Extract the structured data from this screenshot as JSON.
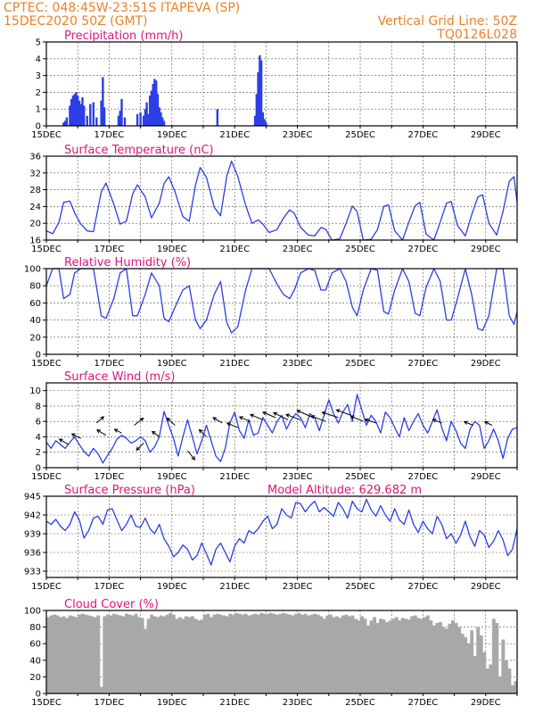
{
  "header": {
    "line1": "CPTEC:   048:45W-23:51S   ITAPEVA (SP)",
    "line2": "15DEC2020 50Z (GMT)",
    "right1": "Vertical Grid Line: 50Z",
    "right2": "TQ0126L028",
    "color": "#e8822a"
  },
  "colors": {
    "title": "#e0127d",
    "line": "#2c3ee6",
    "cloud": "#a8a8a8",
    "grid": "#555555"
  },
  "x_labels": [
    "15DEC",
    "17DEC",
    "19DEC",
    "21DEC",
    "23DEC",
    "25DEC",
    "27DEC",
    "29DEC"
  ],
  "x_label_days": [
    15,
    17,
    19,
    21,
    23,
    25,
    27,
    29
  ],
  "chart_data": [
    {
      "type": "bar",
      "title": "Precipitation (mm/h)",
      "ylim": [
        0,
        5
      ],
      "yticks": [
        "0",
        "1",
        "2",
        "3",
        "4",
        "5"
      ],
      "xlim": [
        15,
        30
      ],
      "x": [
        15.55,
        15.6,
        15.65,
        15.75,
        15.8,
        15.85,
        15.9,
        15.95,
        16.0,
        16.05,
        16.1,
        16.15,
        16.2,
        16.3,
        16.4,
        16.5,
        16.6,
        16.75,
        16.8,
        16.85,
        17.3,
        17.35,
        17.4,
        17.5,
        17.9,
        18.0,
        18.1,
        18.15,
        18.2,
        18.25,
        18.3,
        18.35,
        18.4,
        18.45,
        18.5,
        18.55,
        18.6,
        18.65,
        18.7,
        18.75,
        20.45,
        21.65,
        21.7,
        21.75,
        21.8,
        21.85,
        21.9,
        21.95,
        22.0
      ],
      "values": [
        0.2,
        0.3,
        0.5,
        1.2,
        1.6,
        1.8,
        1.9,
        2.0,
        1.8,
        1.5,
        1.3,
        1.7,
        1.2,
        0.6,
        1.3,
        1.4,
        0.5,
        1.5,
        2.9,
        1.1,
        0.6,
        0.9,
        1.6,
        0.5,
        0.7,
        0.8,
        0.6,
        1.0,
        1.4,
        0.7,
        1.8,
        2.1,
        2.5,
        2.8,
        2.7,
        1.9,
        1.1,
        0.8,
        0.5,
        0.3,
        1.0,
        0.6,
        1.9,
        3.2,
        4.2,
        3.9,
        0.8,
        0.4,
        0.2
      ]
    },
    {
      "type": "line",
      "title": "Surface Temperature (nC)",
      "ylim": [
        16,
        36
      ],
      "yticks": [
        "16",
        "20",
        "24",
        "28",
        "32",
        "36"
      ],
      "xlim": [
        15,
        30
      ],
      "x": [
        15.0,
        15.2,
        15.4,
        15.55,
        15.75,
        15.9,
        16.1,
        16.3,
        16.5,
        16.75,
        16.9,
        17.15,
        17.35,
        17.55,
        17.75,
        17.9,
        18.15,
        18.35,
        18.6,
        18.75,
        18.9,
        19.1,
        19.35,
        19.55,
        19.75,
        19.9,
        20.1,
        20.35,
        20.55,
        20.75,
        20.9,
        21.1,
        21.35,
        21.55,
        21.75,
        21.9,
        22.1,
        22.35,
        22.55,
        22.75,
        22.9,
        23.1,
        23.35,
        23.55,
        23.75,
        23.9,
        24.1,
        24.35,
        24.55,
        24.75,
        24.9,
        25.1,
        25.35,
        25.55,
        25.75,
        25.9,
        26.1,
        26.35,
        26.55,
        26.75,
        26.9,
        27.1,
        27.35,
        27.55,
        27.75,
        27.9,
        28.1,
        28.35,
        28.55,
        28.75,
        28.9,
        29.1,
        29.35,
        29.55,
        29.75,
        29.9,
        30.0
      ],
      "values": [
        18.2,
        17.5,
        20.2,
        25.0,
        25.3,
        22.5,
        19.8,
        18.2,
        18.0,
        27.5,
        29.6,
        24.5,
        19.8,
        20.5,
        27.0,
        29.2,
        26.3,
        21.3,
        24.8,
        29.5,
        31.1,
        27.5,
        21.6,
        20.5,
        29.0,
        33.3,
        31.0,
        23.8,
        21.8,
        31.3,
        34.8,
        31.2,
        24.3,
        20.0,
        20.8,
        19.8,
        17.8,
        18.5,
        21.2,
        23.2,
        22.4,
        19.0,
        17.2,
        17.0,
        19.0,
        18.6,
        16.0,
        16.3,
        20.0,
        24.1,
        22.8,
        16.0,
        16.2,
        18.5,
        24.0,
        24.4,
        18.2,
        16.0,
        20.3,
        24.2,
        25.0,
        17.4,
        16.0,
        20.3,
        24.8,
        25.2,
        19.5,
        17.0,
        22.0,
        26.3,
        26.8,
        20.0,
        17.2,
        22.8,
        30.0,
        31.1,
        25.0
      ]
    },
    {
      "type": "line",
      "title": "Relative Humidity (%)",
      "ylim": [
        0,
        100
      ],
      "yticks": [
        "0",
        "20",
        "40",
        "60",
        "80",
        "100"
      ],
      "xlim": [
        15,
        30
      ],
      "x": [
        15.0,
        15.2,
        15.4,
        15.55,
        15.75,
        15.9,
        16.1,
        16.3,
        16.5,
        16.75,
        16.9,
        17.15,
        17.35,
        17.55,
        17.75,
        17.9,
        18.15,
        18.35,
        18.6,
        18.75,
        18.9,
        19.1,
        19.35,
        19.55,
        19.75,
        19.9,
        20.1,
        20.35,
        20.55,
        20.75,
        20.9,
        21.1,
        21.35,
        21.55,
        21.75,
        21.9,
        22.1,
        22.35,
        22.55,
        22.75,
        22.9,
        23.1,
        23.35,
        23.55,
        23.75,
        23.9,
        24.1,
        24.35,
        24.55,
        24.75,
        24.9,
        25.1,
        25.35,
        25.55,
        25.75,
        25.9,
        26.1,
        26.35,
        26.55,
        26.75,
        26.9,
        27.1,
        27.35,
        27.55,
        27.75,
        27.9,
        28.1,
        28.35,
        28.55,
        28.75,
        28.9,
        29.1,
        29.35,
        29.55,
        29.75,
        29.9,
        30.0
      ],
      "values": [
        80,
        100,
        100,
        65,
        70,
        95,
        100,
        100,
        100,
        45,
        42,
        65,
        95,
        100,
        45,
        45,
        70,
        95,
        80,
        42,
        38,
        55,
        75,
        80,
        40,
        30,
        40,
        70,
        85,
        37,
        25,
        32,
        75,
        100,
        100,
        100,
        100,
        82,
        70,
        65,
        75,
        95,
        100,
        98,
        75,
        75,
        95,
        100,
        85,
        55,
        45,
        75,
        100,
        98,
        50,
        47,
        75,
        100,
        85,
        48,
        45,
        78,
        100,
        85,
        40,
        40,
        65,
        100,
        70,
        30,
        28,
        45,
        100,
        100,
        45,
        35,
        50
      ]
    },
    {
      "type": "line",
      "title": "Surface Wind (m/s)",
      "ylim": [
        0,
        11
      ],
      "yticks": [
        "0",
        "2",
        "4",
        "6",
        "8",
        "10"
      ],
      "xlim": [
        15,
        30
      ],
      "x": [
        15.0,
        15.15,
        15.3,
        15.45,
        15.6,
        15.75,
        15.9,
        16.05,
        16.2,
        16.35,
        16.5,
        16.65,
        16.8,
        16.95,
        17.1,
        17.25,
        17.4,
        17.55,
        17.7,
        17.85,
        18.0,
        18.15,
        18.3,
        18.45,
        18.6,
        18.75,
        18.9,
        19.05,
        19.2,
        19.35,
        19.5,
        19.65,
        19.8,
        19.95,
        20.1,
        20.25,
        20.4,
        20.55,
        20.7,
        20.85,
        21.0,
        21.15,
        21.3,
        21.45,
        21.6,
        21.75,
        21.9,
        22.05,
        22.2,
        22.35,
        22.5,
        22.65,
        22.8,
        22.95,
        23.1,
        23.25,
        23.4,
        23.55,
        23.7,
        23.85,
        24.0,
        24.15,
        24.3,
        24.45,
        24.6,
        24.75,
        24.9,
        25.05,
        25.2,
        25.35,
        25.5,
        25.65,
        25.8,
        25.95,
        26.1,
        26.25,
        26.4,
        26.55,
        26.7,
        26.85,
        27.0,
        27.15,
        27.3,
        27.45,
        27.6,
        27.75,
        27.9,
        28.05,
        28.2,
        28.35,
        28.5,
        28.65,
        28.8,
        28.95,
        29.1,
        29.25,
        29.4,
        29.55,
        29.7,
        29.85,
        30.0
      ],
      "values": [
        3.3,
        2.5,
        3.5,
        3.0,
        2.5,
        3.3,
        4.0,
        3.0,
        2.1,
        1.5,
        2.5,
        1.8,
        0.6,
        1.6,
        2.5,
        3.7,
        4.2,
        3.8,
        3.2,
        3.5,
        4.0,
        3.5,
        2.0,
        2.7,
        4.0,
        7.3,
        5.5,
        3.8,
        1.5,
        4.0,
        6.2,
        4.0,
        1.8,
        3.5,
        5.5,
        3.5,
        1.5,
        0.8,
        2.5,
        5.8,
        7.2,
        4.8,
        3.8,
        6.2,
        4.2,
        4.5,
        6.5,
        5.5,
        4.5,
        6.0,
        6.8,
        5.0,
        6.2,
        7.0,
        6.5,
        5.2,
        7.0,
        6.5,
        4.8,
        6.8,
        8.8,
        7.0,
        5.8,
        7.2,
        8.2,
        6.0,
        9.5,
        7.5,
        5.5,
        6.8,
        6.0,
        4.5,
        7.2,
        6.5,
        5.2,
        4.0,
        6.5,
        4.8,
        6.0,
        7.0,
        5.5,
        4.5,
        6.0,
        7.5,
        5.2,
        3.5,
        6.0,
        4.8,
        3.2,
        2.5,
        5.0,
        6.0,
        5.5,
        2.5,
        3.5,
        5.0,
        3.5,
        1.2,
        3.8,
        5.0,
        5.2
      ]
    },
    {
      "type": "line",
      "title": "Surface Pressure (hPa)",
      "annotation": "Model Altitude: 629.682 m",
      "ylim": [
        932,
        945
      ],
      "yticks": [
        "933",
        "936",
        "939",
        "942",
        "945"
      ],
      "xlim": [
        15,
        30
      ],
      "x": [
        15.0,
        15.15,
        15.3,
        15.45,
        15.6,
        15.75,
        15.9,
        16.05,
        16.2,
        16.35,
        16.5,
        16.65,
        16.8,
        16.95,
        17.1,
        17.25,
        17.4,
        17.55,
        17.7,
        17.85,
        18.0,
        18.15,
        18.3,
        18.45,
        18.6,
        18.75,
        18.9,
        19.05,
        19.2,
        19.35,
        19.5,
        19.65,
        19.8,
        19.95,
        20.1,
        20.25,
        20.4,
        20.55,
        20.7,
        20.85,
        21.0,
        21.15,
        21.3,
        21.45,
        21.6,
        21.75,
        21.9,
        22.05,
        22.2,
        22.35,
        22.5,
        22.65,
        22.8,
        22.95,
        23.1,
        23.25,
        23.4,
        23.55,
        23.7,
        23.85,
        24.0,
        24.15,
        24.3,
        24.45,
        24.6,
        24.75,
        24.9,
        25.05,
        25.2,
        25.35,
        25.5,
        25.65,
        25.8,
        25.95,
        26.1,
        26.25,
        26.4,
        26.55,
        26.7,
        26.85,
        27.0,
        27.15,
        27.3,
        27.45,
        27.6,
        27.75,
        27.9,
        28.05,
        28.2,
        28.35,
        28.5,
        28.65,
        28.8,
        28.95,
        29.1,
        29.25,
        29.4,
        29.55,
        29.7,
        29.85,
        30.0
      ],
      "values": [
        941.0,
        940.5,
        941.3,
        940.2,
        939.5,
        940.5,
        942.5,
        941.2,
        938.3,
        939.5,
        941.5,
        941.8,
        940.5,
        942.8,
        943.0,
        941.2,
        939.5,
        940.5,
        942.0,
        940.2,
        940.0,
        941.5,
        939.8,
        939.0,
        940.5,
        938.2,
        937.0,
        935.3,
        936.0,
        937.2,
        936.5,
        934.8,
        935.5,
        937.5,
        935.8,
        934.0,
        936.5,
        937.5,
        936.0,
        934.5,
        937.0,
        938.2,
        937.5,
        939.5,
        939.0,
        939.8,
        941.0,
        941.8,
        939.8,
        940.5,
        943.0,
        942.0,
        941.5,
        944.0,
        943.8,
        942.5,
        943.5,
        944.2,
        942.5,
        943.2,
        942.5,
        941.8,
        944.0,
        943.0,
        941.5,
        944.2,
        943.0,
        942.5,
        944.5,
        942.8,
        941.8,
        943.5,
        942.0,
        941.0,
        943.0,
        941.2,
        940.5,
        942.8,
        940.5,
        939.2,
        941.0,
        939.8,
        939.0,
        941.8,
        940.5,
        938.2,
        939.0,
        937.5,
        938.8,
        941.0,
        938.5,
        937.0,
        939.5,
        938.8,
        936.8,
        937.8,
        939.5,
        938.0,
        935.5,
        936.5,
        939.8
      ]
    },
    {
      "type": "bar",
      "title": "Cloud Cover (%)",
      "ylim": [
        0,
        100
      ],
      "yticks": [
        "0",
        "20",
        "40",
        "60",
        "80",
        "100"
      ],
      "xlim": [
        15,
        30
      ],
      "x": [
        15.0,
        15.1,
        15.2,
        15.3,
        15.4,
        15.5,
        15.6,
        15.7,
        15.8,
        15.9,
        16.0,
        16.1,
        16.2,
        16.3,
        16.4,
        16.5,
        16.6,
        16.7,
        16.8,
        16.9,
        17.0,
        17.1,
        17.2,
        17.3,
        17.4,
        17.5,
        17.6,
        17.7,
        17.8,
        17.9,
        18.0,
        18.1,
        18.2,
        18.3,
        18.4,
        18.5,
        18.6,
        18.7,
        18.8,
        18.9,
        19.0,
        19.1,
        19.2,
        19.3,
        19.4,
        19.5,
        19.6,
        19.7,
        19.8,
        19.9,
        20.0,
        20.1,
        20.2,
        20.3,
        20.4,
        20.5,
        20.6,
        20.7,
        20.8,
        20.9,
        21.0,
        21.1,
        21.2,
        21.3,
        21.4,
        21.5,
        21.6,
        21.7,
        21.8,
        21.9,
        22.0,
        22.1,
        22.2,
        22.3,
        22.4,
        22.5,
        22.6,
        22.7,
        22.8,
        22.9,
        23.0,
        23.1,
        23.2,
        23.3,
        23.4,
        23.5,
        23.6,
        23.7,
        23.8,
        23.9,
        24.0,
        24.1,
        24.2,
        24.3,
        24.4,
        24.5,
        24.6,
        24.7,
        24.8,
        24.9,
        25.0,
        25.1,
        25.2,
        25.3,
        25.4,
        25.5,
        25.6,
        25.7,
        25.8,
        25.9,
        26.0,
        26.1,
        26.2,
        26.3,
        26.4,
        26.5,
        26.6,
        26.7,
        26.8,
        26.9,
        27.0,
        27.1,
        27.2,
        27.3,
        27.4,
        27.5,
        27.6,
        27.7,
        27.8,
        27.9,
        28.0,
        28.1,
        28.2,
        28.3,
        28.4,
        28.5,
        28.6,
        28.7,
        28.8,
        28.9,
        29.0,
        29.1,
        29.2,
        29.3,
        29.4,
        29.5,
        29.6,
        29.7,
        29.8,
        29.9
      ],
      "values": [
        92,
        94,
        95,
        94,
        92,
        93,
        91,
        94,
        93,
        92,
        95,
        96,
        95,
        94,
        93,
        92,
        94,
        8,
        93,
        95,
        94,
        96,
        95,
        94,
        93,
        96,
        95,
        94,
        96,
        92,
        91,
        78,
        90,
        95,
        93,
        92,
        94,
        93,
        95,
        97,
        95,
        90,
        92,
        90,
        93,
        92,
        93,
        90,
        88,
        89,
        95,
        96,
        92,
        95,
        96,
        95,
        94,
        93,
        96,
        95,
        97,
        96,
        95,
        96,
        94,
        95,
        96,
        95,
        97,
        96,
        96,
        97,
        96,
        95,
        96,
        97,
        96,
        95,
        94,
        96,
        97,
        95,
        96,
        94,
        95,
        96,
        95,
        93,
        90,
        94,
        95,
        92,
        93,
        91,
        94,
        95,
        93,
        94,
        90,
        88,
        93,
        90,
        82,
        88,
        92,
        85,
        90,
        89,
        86,
        88,
        90,
        92,
        88,
        91,
        90,
        89,
        93,
        94,
        91,
        90,
        92,
        94,
        88,
        82,
        85,
        86,
        80,
        78,
        84,
        88,
        85,
        80,
        72,
        68,
        60,
        76,
        45,
        80,
        70,
        50,
        30,
        35,
        90,
        85,
        20,
        65,
        40,
        30,
        10,
        15
      ]
    }
  ]
}
